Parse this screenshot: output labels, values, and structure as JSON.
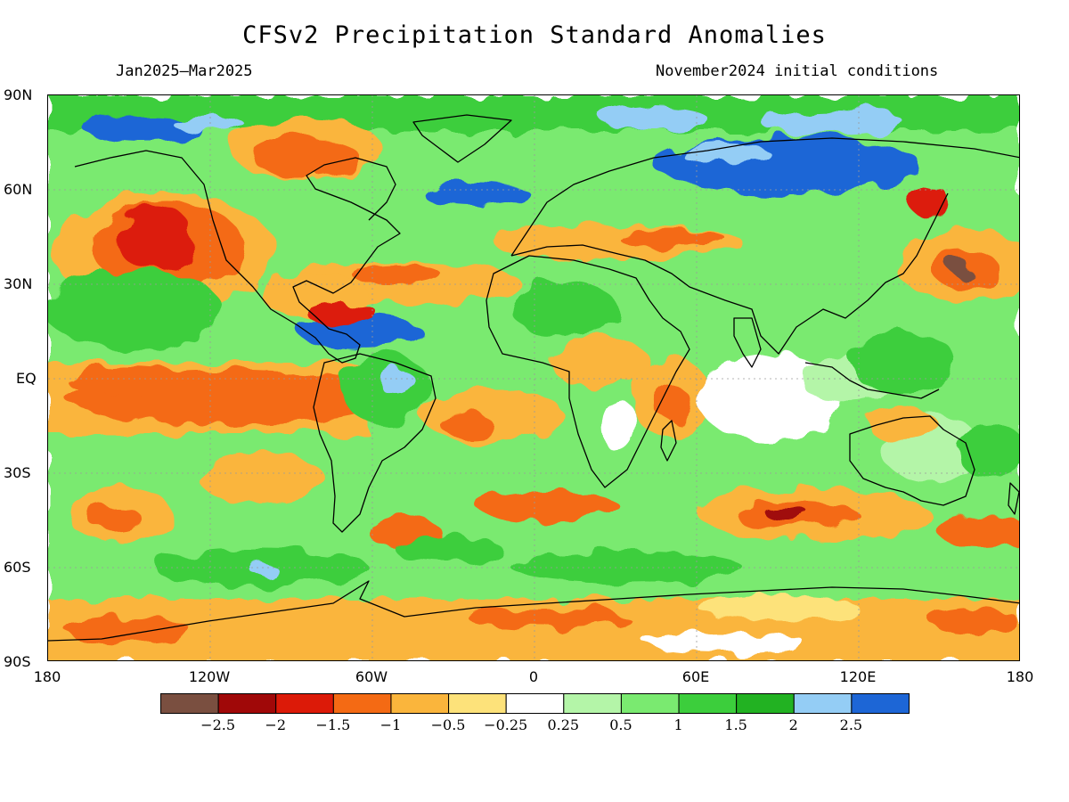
{
  "title": "CFSv2 Precipitation Standard Anomalies",
  "period": "Jan2025–Mar2025",
  "initial_conditions": "November2024 initial conditions",
  "lat_labels": [
    "90N",
    "60N",
    "30N",
    "EQ",
    "30S",
    "60S",
    "90S"
  ],
  "lon_labels": [
    "180",
    "120W",
    "60W",
    "0",
    "60E",
    "120E",
    "180"
  ],
  "colorbar": {
    "colors": [
      "#7a4f40",
      "#a00808",
      "#dc1a08",
      "#f46a14",
      "#fab53c",
      "#fde27a",
      "#ffffff",
      "#b4f5a8",
      "#7aea70",
      "#3cce3c",
      "#22b222",
      "#94cdf5",
      "#1d66d6"
    ],
    "tick_labels": [
      "−2.5",
      "−2",
      "−1.5",
      "−1",
      "−0.5",
      "−0.25",
      "0.25",
      "0.5",
      "1",
      "1.5",
      "2",
      "2.5"
    ]
  }
}
